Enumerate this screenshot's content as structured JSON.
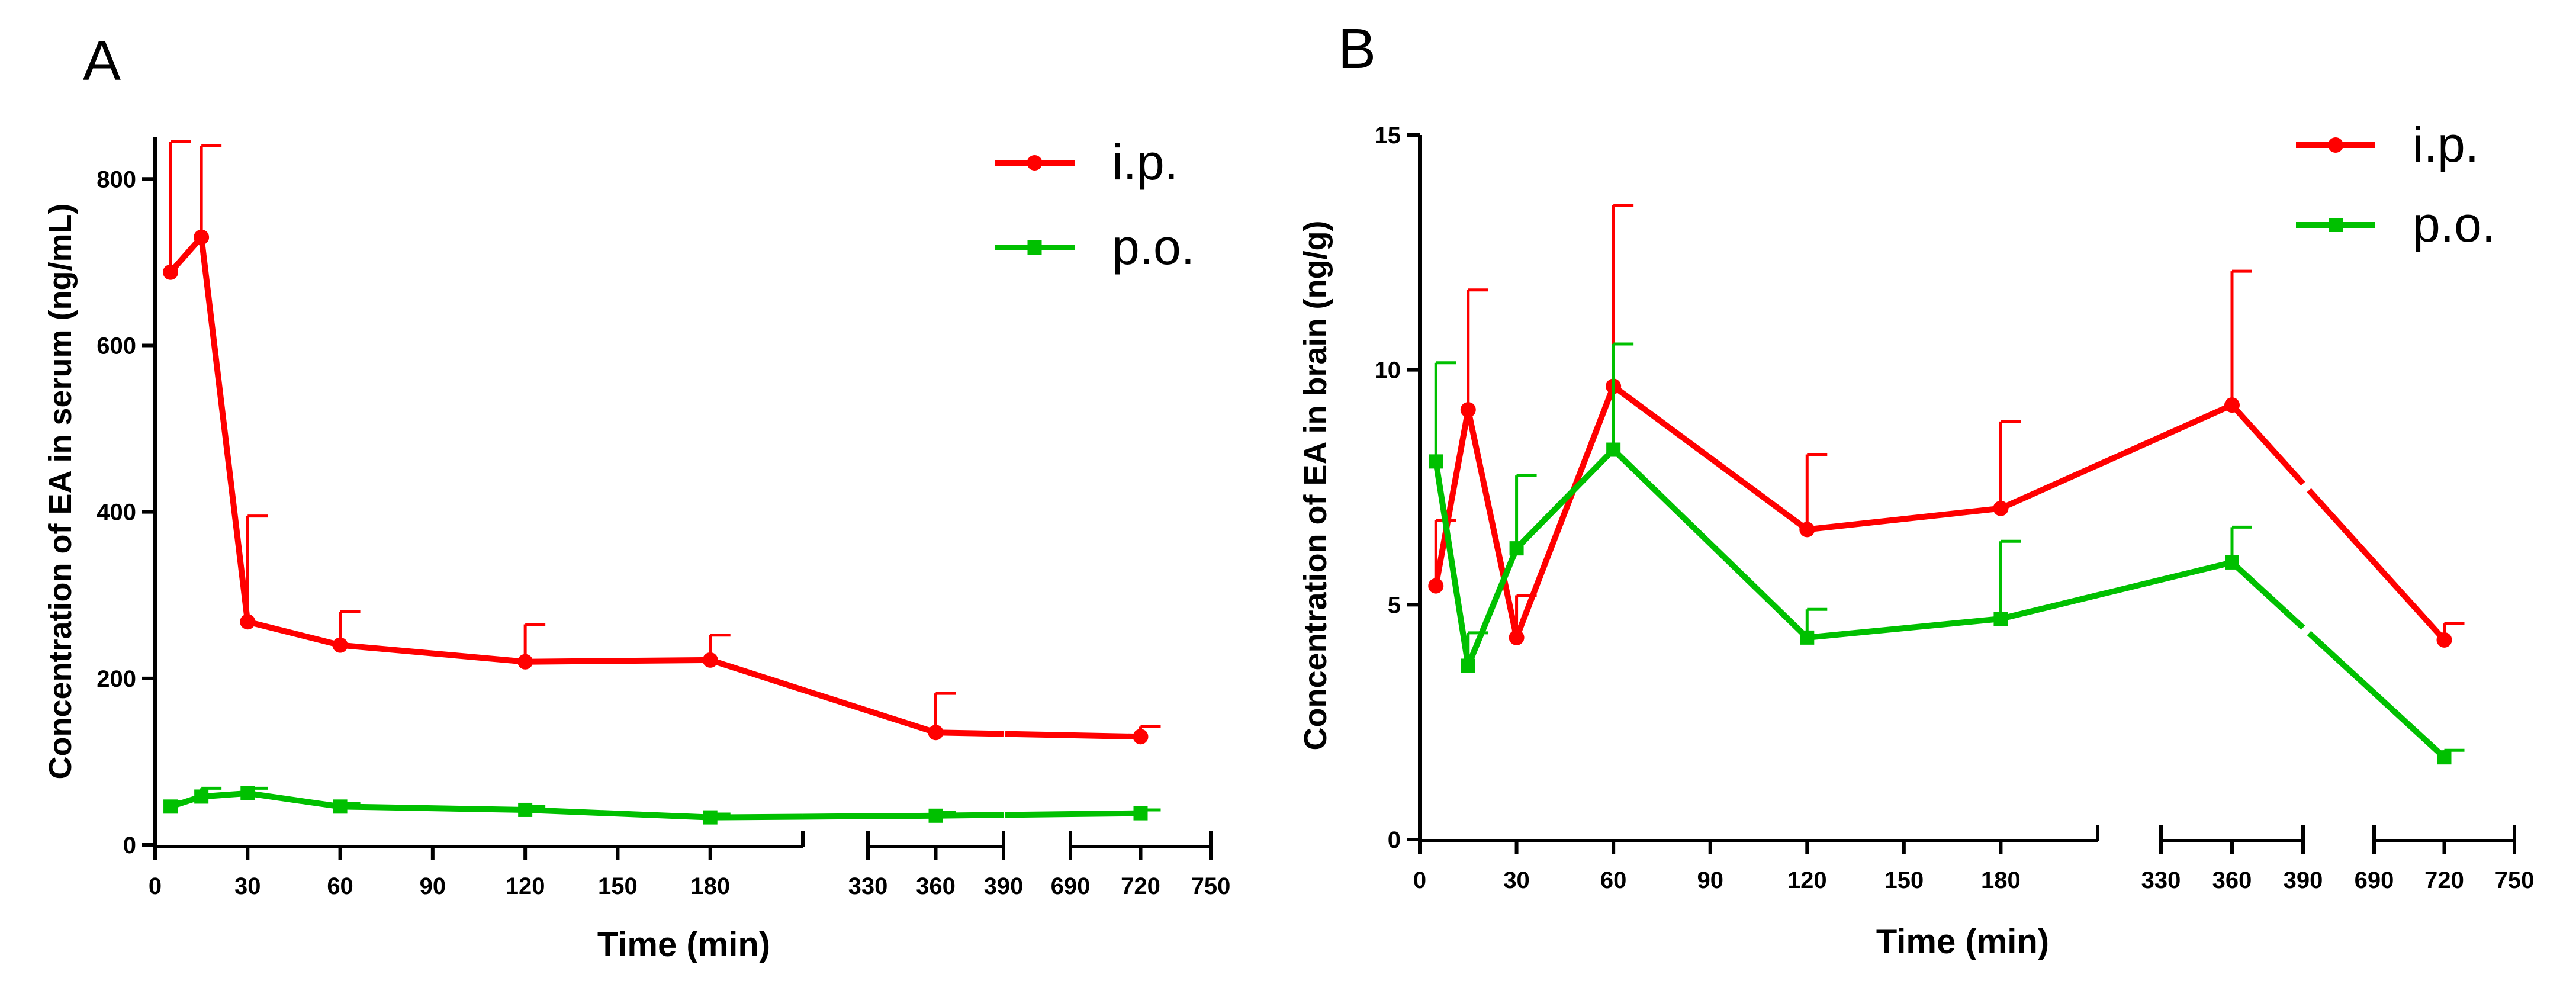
{
  "chart_data": [
    {
      "type": "line",
      "panel": "A",
      "title": "",
      "xlabel": "Time (min)",
      "ylabel": "Concentration of EA in serum (ng/mL)",
      "ylim": [
        0,
        850
      ],
      "y_ticks": [
        0,
        200,
        400,
        600,
        800
      ],
      "x_segments": [
        {
          "range": [
            0,
            210
          ],
          "ticks": [
            0,
            30,
            60,
            90,
            120,
            150,
            180
          ]
        },
        {
          "range": [
            330,
            390
          ],
          "ticks": [
            330,
            360,
            390
          ]
        },
        {
          "range": [
            690,
            750
          ],
          "ticks": [
            690,
            720,
            750
          ]
        }
      ],
      "legend": [
        "i.p.",
        "p.o."
      ],
      "legend_position": "top-right",
      "series": [
        {
          "name": "i.p.",
          "color": "#ff0000",
          "marker": "circle",
          "x": [
            5,
            15,
            30,
            60,
            120,
            180,
            360,
            720
          ],
          "values": [
            688,
            730,
            268,
            240,
            220,
            222,
            135,
            130
          ],
          "error_upper": [
            845,
            840,
            395,
            280,
            265,
            252,
            182,
            142
          ]
        },
        {
          "name": "p.o.",
          "color": "#00c000",
          "marker": "square",
          "x": [
            5,
            15,
            30,
            60,
            120,
            180,
            360,
            720
          ],
          "values": [
            46,
            58,
            62,
            46,
            42,
            33,
            35,
            38
          ],
          "error_upper": [
            52,
            68,
            68,
            50,
            46,
            37,
            39,
            42
          ]
        }
      ]
    },
    {
      "type": "line",
      "panel": "B",
      "title": "",
      "xlabel": "Time (min)",
      "ylabel": "Concentration of EA in brain (ng/g)",
      "ylim": [
        0,
        15
      ],
      "y_ticks": [
        0,
        5,
        10,
        15
      ],
      "x_segments": [
        {
          "range": [
            0,
            210
          ],
          "ticks": [
            0,
            30,
            60,
            90,
            120,
            150,
            180
          ]
        },
        {
          "range": [
            330,
            390
          ],
          "ticks": [
            330,
            360,
            390
          ]
        },
        {
          "range": [
            690,
            750
          ],
          "ticks": [
            690,
            720,
            750
          ]
        }
      ],
      "legend": [
        "i.p.",
        "p.o."
      ],
      "legend_position": "top-right",
      "series": [
        {
          "name": "i.p.",
          "color": "#ff0000",
          "marker": "circle",
          "x": [
            5,
            15,
            30,
            60,
            120,
            180,
            360,
            720
          ],
          "values": [
            5.4,
            9.15,
            4.3,
            9.65,
            6.6,
            7.05,
            9.25,
            4.25
          ],
          "error_upper": [
            6.8,
            11.7,
            5.2,
            13.5,
            8.2,
            8.9,
            12.1,
            4.6
          ]
        },
        {
          "name": "p.o.",
          "color": "#00c000",
          "marker": "square",
          "x": [
            5,
            15,
            30,
            60,
            120,
            180,
            360,
            720
          ],
          "values": [
            8.05,
            3.7,
            6.2,
            8.3,
            4.3,
            4.7,
            5.9,
            1.75
          ],
          "error_upper": [
            10.15,
            4.4,
            7.75,
            10.55,
            4.9,
            6.35,
            6.65,
            1.9
          ]
        }
      ]
    }
  ]
}
